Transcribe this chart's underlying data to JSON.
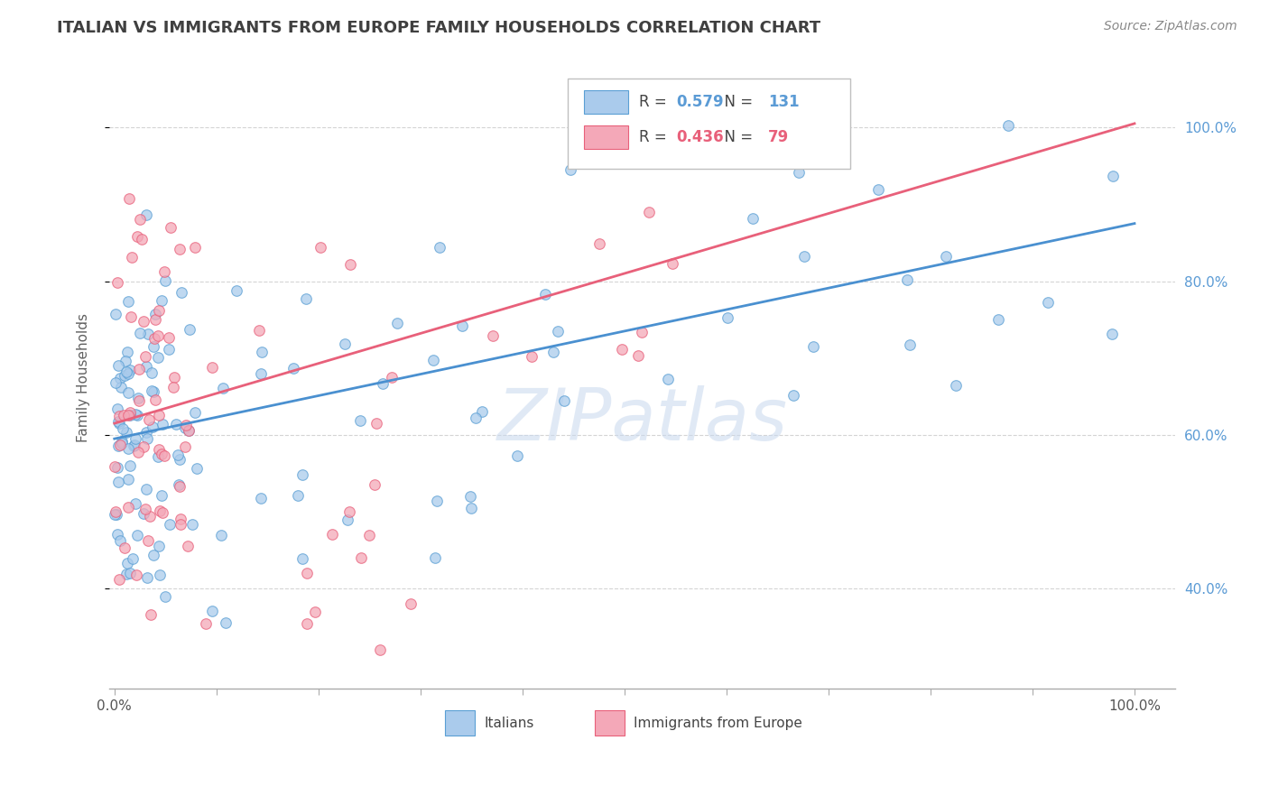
{
  "title": "ITALIAN VS IMMIGRANTS FROM EUROPE FAMILY HOUSEHOLDS CORRELATION CHART",
  "source": "Source: ZipAtlas.com",
  "ylabel": "Family Households",
  "blue_R": "0.579",
  "blue_N": "131",
  "pink_R": "0.436",
  "pink_N": "79",
  "blue_color": "#aacbec",
  "pink_color": "#f4a8b8",
  "blue_edge_color": "#5a9fd4",
  "pink_edge_color": "#e8607a",
  "blue_line_color": "#4a90d0",
  "pink_line_color": "#e8607a",
  "legend_blue_color": "#5b9bd5",
  "legend_pink_color": "#e8607a",
  "title_color": "#404040",
  "source_color": "#888888",
  "ylabel_color": "#606060",
  "ytick_color": "#5b9bd5",
  "watermark_color": "#c8d8ee",
  "blue_line_y0": 0.595,
  "blue_line_y1": 0.875,
  "pink_line_y0": 0.615,
  "pink_line_y1": 1.005,
  "ylim_low": 0.27,
  "ylim_high": 1.08,
  "xlim_low": -0.005,
  "xlim_high": 1.04
}
